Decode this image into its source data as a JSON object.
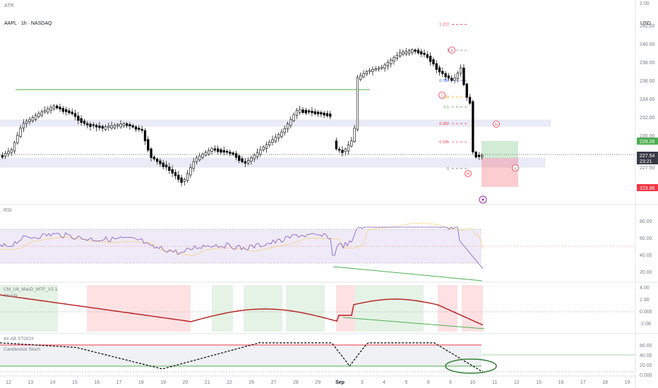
{
  "header": {
    "symbol_line": "AAPL · 1h · NASDAQ",
    "atr_label": "ATR",
    "atr_value": "2.00",
    "currency": "USD"
  },
  "price_axis": {
    "ticks": [
      "242.00",
      "240.00",
      "238.00",
      "236.00",
      "234.00",
      "232.00",
      "230.00",
      "228.00",
      "227.50"
    ],
    "tags": {
      "target": {
        "text": "229.26",
        "color": "#4caf50"
      },
      "last": {
        "text": "227.54",
        "sub": "23:21",
        "color": "#363a45"
      },
      "stop": {
        "text": "223.96",
        "color": "#f23645"
      }
    }
  },
  "fib_levels": [
    {
      "label": "1.272",
      "price": 242.1,
      "color": "#f23645"
    },
    {
      "label": "1",
      "price": 239.3,
      "color": "#787b86"
    },
    {
      "label": "0.786",
      "price": 236.0,
      "color": "#2962ff"
    },
    {
      "label": "0.618",
      "price": 234.2,
      "color": "#ff9800"
    },
    {
      "label": "0.5",
      "price": 233.1,
      "color": "#4caf50"
    },
    {
      "label": "0.382",
      "price": 231.3,
      "color": "#f23645"
    },
    {
      "label": "0.236",
      "price": 229.3,
      "color": "#f23645"
    },
    {
      "label": "0",
      "price": 226.4,
      "color": "#787b86"
    }
  ],
  "wave_labels": [
    {
      "text": "ii",
      "x": 640,
      "y": 71
    },
    {
      "text": "i",
      "x": 626,
      "y": 135
    },
    {
      "text": "iv",
      "x": 703,
      "y": 176
    },
    {
      "text": "iii",
      "x": 663,
      "y": 246
    },
    {
      "text": "v",
      "x": 730,
      "y": 238
    }
  ],
  "x_axis": {
    "labels": [
      "12",
      "13",
      "14",
      "15",
      "16",
      "17",
      "18",
      "19",
      "20",
      "21",
      "22",
      "26",
      "27",
      "28",
      "29",
      "Sep",
      "3",
      "4",
      "5",
      "6",
      "9",
      "10",
      "11",
      "12",
      "15",
      "16",
      "17",
      "18",
      "19"
    ]
  },
  "rsi": {
    "title": "RSI",
    "ticks": [
      "80.00",
      "60.00",
      "40.00",
      "20.00"
    ]
  },
  "macd": {
    "title": "CM_Ult_MacD_MTF_V2.1",
    "subtitle": "4X ichi",
    "ticks": [
      "4.00",
      "2.00",
      "0.000",
      "-2.00"
    ]
  },
  "stoch": {
    "title": "4X AB STOCH",
    "subtitle": "Candlestick Stoch",
    "ticks": [
      "80.00",
      "40.00",
      "20.00",
      "0.000"
    ]
  },
  "colors": {
    "up_candle": "#ffffff",
    "down_candle": "#000000",
    "bull_zone": "#4caf50",
    "bear_zone": "#f23645",
    "rsi_line": "#7e57c2",
    "macd_neg": "#b71c1c",
    "macd_pos": "#2e7d32"
  }
}
